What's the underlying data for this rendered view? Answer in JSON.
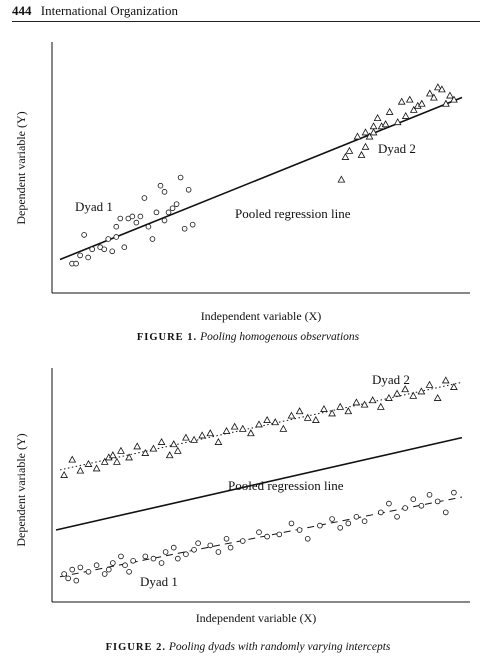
{
  "header": {
    "page_number": "444",
    "journal": "International Organization"
  },
  "figures": [
    {
      "caption_label": "FIGURE 1.",
      "caption_title": "Pooling homogenous observations",
      "ylabel": "Dependent variable (Y)",
      "xlabel": "Independent variable (X)",
      "labels": {
        "dyad1": "Dyad 1",
        "dyad2": "Dyad 2",
        "pooled": "Pooled regression line"
      }
    },
    {
      "caption_label": "FIGURE 2.",
      "caption_title": "Pooling dyads with randomly varying intercepts",
      "ylabel": "Dependent variable (Y)",
      "xlabel": "Independent variable (X)",
      "labels": {
        "dyad1": "Dyad 1",
        "dyad2": "Dyad 2",
        "pooled": "Pooled regression line"
      }
    }
  ],
  "chart_data": [
    {
      "type": "scatter",
      "title": "Pooling homogenous observations",
      "xlabel": "Independent variable (X)",
      "ylabel": "Dependent variable (Y)",
      "xlim": [
        0,
        100
      ],
      "ylim": [
        0,
        100
      ],
      "axis_ticks": false,
      "series": [
        {
          "name": "Dyad 1",
          "marker": "circle",
          "x": [
            3,
            4,
            5,
            6,
            7,
            8,
            10,
            11,
            12,
            13,
            14,
            14,
            15,
            16,
            17,
            18,
            19,
            20,
            21,
            22,
            23,
            24,
            25,
            26,
            26,
            27,
            28,
            29,
            30,
            31,
            32,
            33
          ],
          "y": [
            8,
            8,
            12,
            22,
            11,
            15,
            16,
            15,
            20,
            14,
            21,
            26,
            30,
            16,
            30,
            31,
            28,
            31,
            40,
            26,
            20,
            33,
            46,
            29,
            43,
            33,
            35,
            37,
            50,
            25,
            44,
            27
          ]
        },
        {
          "name": "Dyad 2",
          "marker": "triangle",
          "x": [
            70,
            71,
            72,
            74,
            75,
            76,
            76,
            77,
            78,
            78,
            79,
            80,
            81,
            82,
            84,
            85,
            86,
            87,
            88,
            89,
            90,
            92,
            93,
            94,
            95,
            96,
            97,
            98
          ],
          "y": [
            49,
            60,
            63,
            70,
            61,
            65,
            72,
            70,
            75,
            72,
            79,
            75,
            76,
            82,
            77,
            87,
            80,
            88,
            83,
            85,
            86,
            91,
            89,
            94,
            93,
            86,
            90,
            88
          ]
        }
      ],
      "lines": [
        {
          "name": "Pooled regression line",
          "style": "solid",
          "x": [
            0,
            100
          ],
          "y": [
            10,
            89
          ]
        }
      ]
    },
    {
      "type": "scatter",
      "title": "Pooling dyads with randomly varying intercepts",
      "xlabel": "Independent variable (X)",
      "ylabel": "Dependent variable (Y)",
      "xlim": [
        0,
        100
      ],
      "ylim": [
        0,
        100
      ],
      "axis_ticks": false,
      "series": [
        {
          "name": "Dyad 1",
          "marker": "circle",
          "fit_style": "dashed",
          "x": [
            2,
            3,
            4,
            5,
            6,
            8,
            10,
            12,
            13,
            14,
            16,
            17,
            18,
            19,
            22,
            24,
            26,
            27,
            29,
            30,
            32,
            34,
            35,
            38,
            40,
            42,
            43,
            46,
            50,
            52,
            55,
            58,
            60,
            62,
            65,
            68,
            70,
            72,
            74,
            76,
            80,
            82,
            84,
            86,
            88,
            90,
            92,
            94,
            96,
            98
          ],
          "y": [
            10,
            8,
            12,
            7,
            13,
            11,
            14,
            10,
            12,
            15,
            18,
            14,
            11,
            16,
            18,
            17,
            15,
            20,
            22,
            17,
            19,
            21,
            24,
            23,
            20,
            26,
            22,
            25,
            29,
            27,
            28,
            33,
            30,
            26,
            32,
            35,
            31,
            33,
            36,
            34,
            38,
            42,
            36,
            40,
            44,
            41,
            46,
            43,
            38,
            47
          ]
        },
        {
          "name": "Dyad 2",
          "marker": "triangle",
          "fit_style": "dotted",
          "x": [
            2,
            4,
            6,
            8,
            10,
            12,
            13,
            14,
            15,
            16,
            18,
            20,
            22,
            24,
            26,
            28,
            29,
            30,
            32,
            34,
            36,
            38,
            40,
            42,
            44,
            46,
            48,
            50,
            52,
            54,
            56,
            58,
            60,
            62,
            64,
            66,
            68,
            70,
            72,
            74,
            76,
            78,
            80,
            82,
            84,
            86,
            88,
            90,
            92,
            94,
            96,
            98
          ],
          "y": [
            55,
            62,
            57,
            60,
            58,
            61,
            63,
            64,
            61,
            66,
            63,
            68,
            65,
            67,
            70,
            64,
            69,
            66,
            72,
            71,
            73,
            74,
            70,
            75,
            77,
            76,
            74,
            78,
            80,
            79,
            76,
            82,
            84,
            81,
            80,
            85,
            83,
            86,
            84,
            88,
            87,
            89,
            86,
            90,
            92,
            94,
            91,
            93,
            96,
            90,
            98,
            95
          ]
        }
      ],
      "lines": [
        {
          "name": "Pooled regression line",
          "style": "solid",
          "x": [
            0,
            100
          ],
          "y": [
            30,
            72
          ]
        }
      ]
    }
  ]
}
